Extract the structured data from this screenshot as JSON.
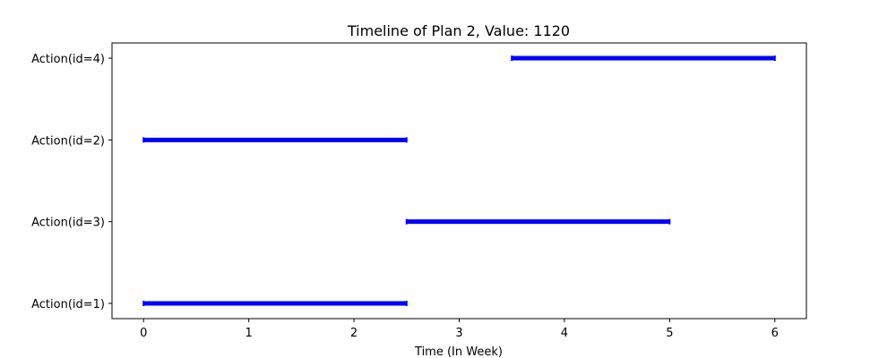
{
  "chart_data": {
    "type": "timeline",
    "title": "Timeline of Plan 2, Value: 1120",
    "xlabel": "Time (In Week)",
    "ylabel": "",
    "xlim": [
      -0.3,
      6.3
    ],
    "xticks": [
      0,
      1,
      2,
      3,
      4,
      5,
      6
    ],
    "categories": [
      "Action(id=1)",
      "Action(id=3)",
      "Action(id=2)",
      "Action(id=4)"
    ],
    "intervals": [
      {
        "label": "Action(id=1)",
        "start": 0,
        "end": 2.5
      },
      {
        "label": "Action(id=3)",
        "start": 2.5,
        "end": 5
      },
      {
        "label": "Action(id=2)",
        "start": 0,
        "end": 2.5
      },
      {
        "label": "Action(id=4)",
        "start": 3.5,
        "end": 6
      }
    ],
    "bar_color": "#0000ff",
    "grid": false,
    "legend": "none"
  }
}
